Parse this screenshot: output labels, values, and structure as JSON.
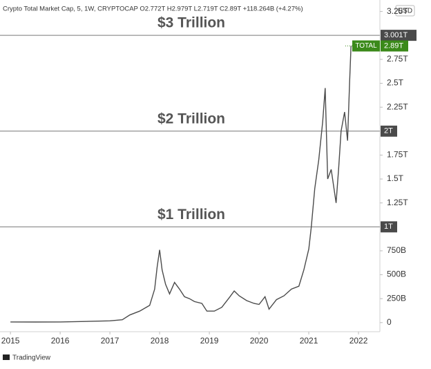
{
  "chart_data": {
    "type": "line",
    "header": "Crypto Total Market Cap, 5, 1W, CRYPTOCAP  O2.772T  H2.979T  L2.719T  C2.89T  +118.264B (+4.27%)",
    "currency": "USD",
    "brand": "TradingView",
    "xlim": [
      2014.79,
      2022.43
    ],
    "xticks": [
      2015,
      2016,
      2017,
      2018,
      2019,
      2020,
      2021,
      2022
    ],
    "ylim": [
      -0.095,
      3.37
    ],
    "yticks": [
      0,
      {
        "value": 0.25,
        "label": "250B"
      },
      {
        "value": 0.5,
        "label": "500B"
      },
      {
        "value": 0.75,
        "label": "750B"
      },
      {
        "value": 1.25,
        "label": "1.25T"
      },
      {
        "value": 1.5,
        "label": "1.5T"
      },
      {
        "value": 1.75,
        "label": "1.75T"
      },
      {
        "value": 2.25,
        "label": "2.25T"
      },
      {
        "value": 2.5,
        "label": "2.5T"
      },
      {
        "value": 2.75,
        "label": "2.75T"
      },
      {
        "value": 3.25,
        "label": "3.25T"
      }
    ],
    "levels": [
      {
        "value": 1,
        "label": "1T",
        "text": "$1 Trillion"
      },
      {
        "value": 2,
        "label": "2T",
        "text": "$2 Trillion"
      },
      {
        "value": 3.001,
        "label": "3.001T",
        "text": "$3 Trillion"
      }
    ],
    "last": {
      "name": "TOTAL",
      "value": 2.89,
      "label": "2.89T",
      "color": "#3b8a1a"
    },
    "series": [
      {
        "name": "TOTAL",
        "color": "#4a4a4a",
        "x": [
          2015.0,
          2015.5,
          2016.0,
          2016.5,
          2017.0,
          2017.25,
          2017.4,
          2017.6,
          2017.8,
          2017.9,
          2017.95,
          2018.0,
          2018.05,
          2018.12,
          2018.2,
          2018.3,
          2018.4,
          2018.5,
          2018.6,
          2018.7,
          2018.85,
          2018.95,
          2019.1,
          2019.25,
          2019.4,
          2019.5,
          2019.6,
          2019.75,
          2019.9,
          2020.0,
          2020.12,
          2020.2,
          2020.35,
          2020.5,
          2020.65,
          2020.8,
          2020.9,
          2021.0,
          2021.05,
          2021.12,
          2021.2,
          2021.28,
          2021.33,
          2021.38,
          2021.45,
          2021.55,
          2021.6,
          2021.65,
          2021.72,
          2021.78,
          2021.82,
          2021.85
        ],
        "values": [
          0.007,
          0.006,
          0.007,
          0.012,
          0.018,
          0.03,
          0.08,
          0.12,
          0.18,
          0.35,
          0.58,
          0.76,
          0.55,
          0.4,
          0.3,
          0.42,
          0.35,
          0.27,
          0.25,
          0.22,
          0.2,
          0.12,
          0.12,
          0.16,
          0.26,
          0.33,
          0.28,
          0.23,
          0.2,
          0.19,
          0.27,
          0.14,
          0.24,
          0.28,
          0.35,
          0.38,
          0.55,
          0.77,
          1.0,
          1.4,
          1.7,
          2.1,
          2.45,
          1.5,
          1.6,
          1.25,
          1.6,
          2.0,
          2.2,
          1.9,
          2.5,
          2.89
        ]
      }
    ]
  }
}
